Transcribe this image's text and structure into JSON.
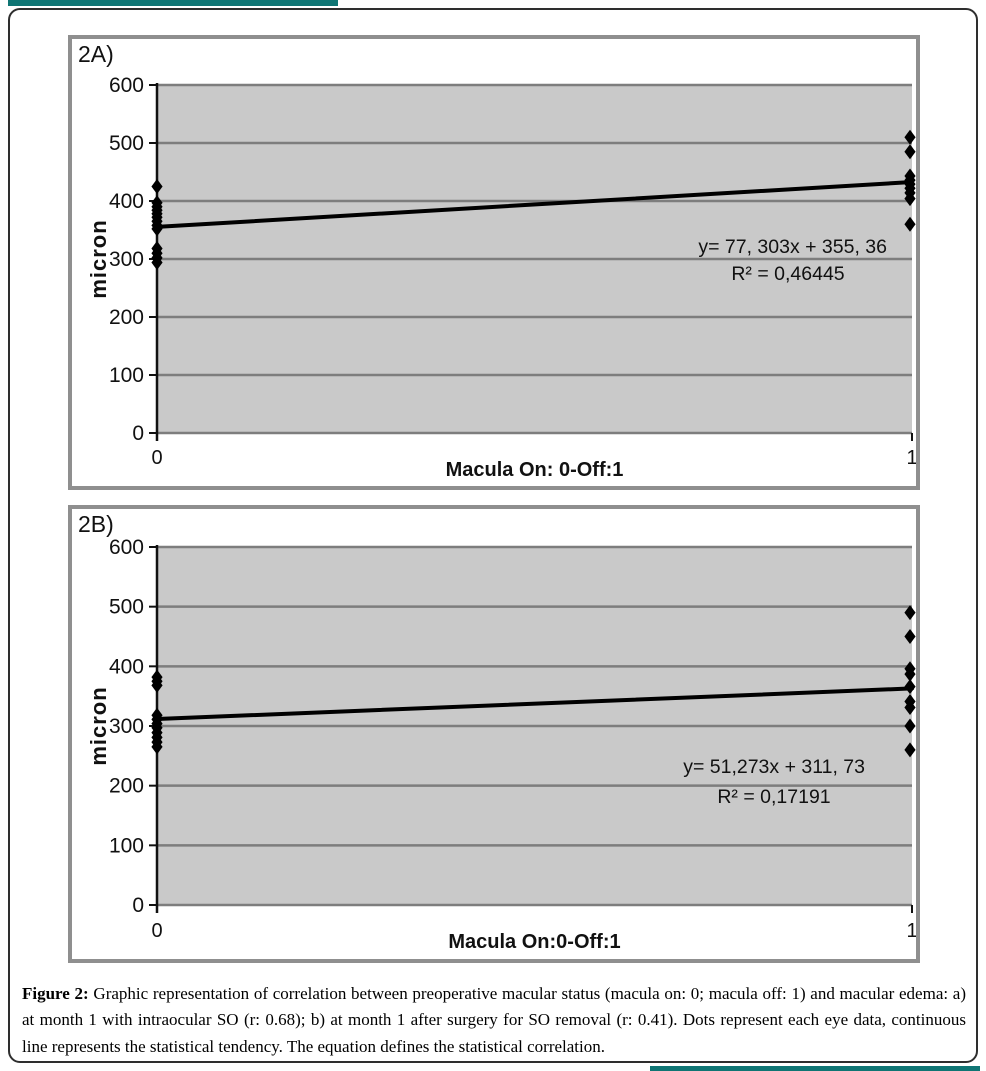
{
  "colors": {
    "plot_bg": "#c9c9c9",
    "gridline": "#7d7d7d",
    "axis": "#111111",
    "marker": "#000000",
    "trendline": "#000000",
    "panel_border": "#8f8f8f",
    "teal_accent": "#0f7574"
  },
  "figure": {
    "caption_label": "Figure 2:",
    "caption_text": "Graphic representation of correlation between preoperative macular status (macula on: 0; macula off: 1) and macular edema: a) at month 1 with intraocular SO (r: 0.68); b) at month 1 after surgery for SO removal (r: 0.41). Dots represent each eye data, continuous line represents the statistical tendency. The equation defines the statistical correlation."
  },
  "chart_data": [
    {
      "type": "scatter",
      "panel_label": "2A)",
      "ylabel": "micron",
      "xlabel": "Macula On: 0-Off:1",
      "ylim": [
        0,
        600
      ],
      "y_ticks": [
        0,
        100,
        200,
        300,
        400,
        500,
        600
      ],
      "x_tick_labels": [
        "0",
        "1"
      ],
      "grid": true,
      "legend": false,
      "series": [
        {
          "name": "macula on (x=0)",
          "x": 0,
          "values": [
            425,
            397,
            390,
            384,
            378,
            372,
            365,
            358,
            352,
            318,
            310,
            302,
            294
          ]
        },
        {
          "name": "macula off (x=1)",
          "x": 1,
          "values": [
            510,
            485,
            443,
            436,
            429,
            422,
            414,
            404,
            360
          ]
        }
      ],
      "trend": {
        "slope": 77.303,
        "intercept": 355.36,
        "equation": "y= 77, 303x + 355, 36",
        "r_squared": "R² = 0,46445"
      }
    },
    {
      "type": "scatter",
      "panel_label": "2B)",
      "ylabel": "micron",
      "xlabel": "Macula On:0-Off:1",
      "ylim": [
        0,
        600
      ],
      "y_ticks": [
        0,
        100,
        200,
        300,
        400,
        500,
        600
      ],
      "x_tick_labels": [
        "0",
        "1"
      ],
      "grid": true,
      "legend": false,
      "series": [
        {
          "name": "macula on (x=0)",
          "x": 0,
          "values": [
            382,
            375,
            368,
            318,
            311,
            304,
            297,
            289,
            281,
            273,
            265
          ]
        },
        {
          "name": "macula off (x=1)",
          "x": 1,
          "values": [
            490,
            450,
            396,
            387,
            366,
            341,
            331,
            300,
            260
          ]
        }
      ],
      "trend": {
        "slope": 51.273,
        "intercept": 311.73,
        "equation": "y= 51,273x + 311, 73",
        "r_squared": "R² = 0,17191"
      }
    }
  ]
}
